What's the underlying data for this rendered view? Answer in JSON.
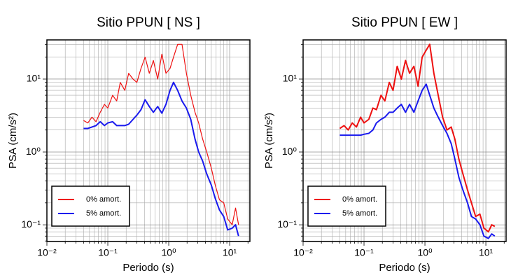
{
  "chart_data": [
    {
      "type": "line",
      "title": "Sitio PPUN [ NS ]",
      "xlabel": "Periodo (s)",
      "ylabel": "PSA (cm/s²)",
      "xscale": "log",
      "yscale": "log",
      "grid": true,
      "legend": "lower left",
      "xlim": [
        0.01,
        21.5
      ],
      "ylim": [
        0.059,
        34.5
      ],
      "xticks": [
        {
          "value": 0.01,
          "label": "10⁻²"
        },
        {
          "value": 0.1,
          "label": "10⁻¹"
        },
        {
          "value": 1,
          "label": "10⁰"
        },
        {
          "value": 10,
          "label": "10¹"
        }
      ],
      "yticks": [
        {
          "value": 0.1,
          "label": "10⁻¹"
        },
        {
          "value": 1,
          "label": "10⁰"
        },
        {
          "value": 10,
          "label": "10¹"
        }
      ],
      "x": [
        0.04,
        0.047,
        0.055,
        0.064,
        0.075,
        0.088,
        0.1,
        0.12,
        0.14,
        0.16,
        0.19,
        0.22,
        0.26,
        0.3,
        0.35,
        0.41,
        0.48,
        0.56,
        0.66,
        0.77,
        0.9,
        1.05,
        1.2,
        1.4,
        1.65,
        1.95,
        2.3,
        2.7,
        3.1,
        3.6,
        4.2,
        5,
        5.8,
        6.8,
        8,
        9.3,
        11,
        12.5,
        14
      ],
      "series": [
        {
          "name": "0% amort.",
          "color": "#ee1111",
          "width": 1.2,
          "values": [
            2.7,
            2.5,
            3,
            2.6,
            3.5,
            4.5,
            4,
            6,
            5,
            9,
            7,
            12,
            10,
            9,
            14,
            20,
            12,
            18,
            10,
            22,
            12,
            14,
            20,
            30,
            30,
            12,
            6,
            3.5,
            2.5,
            1.5,
            1.0,
            0.6,
            0.35,
            0.22,
            0.2,
            0.12,
            0.1,
            0.17,
            0.1
          ]
        },
        {
          "name": "5% amort.",
          "color": "#1a1aee",
          "width": 2,
          "values": [
            2.1,
            2.1,
            2.2,
            2.3,
            2.6,
            2.3,
            2.5,
            2.6,
            2.3,
            2.3,
            2.3,
            2.4,
            2.8,
            3.2,
            3.8,
            5.2,
            4.2,
            3.5,
            4.2,
            3.4,
            4.5,
            7,
            9,
            7,
            5,
            4,
            2.8,
            1.5,
            1.0,
            0.75,
            0.5,
            0.35,
            0.23,
            0.16,
            0.13,
            0.085,
            0.09,
            0.1,
            0.07
          ]
        }
      ]
    },
    {
      "type": "line",
      "title": "Sitio PPUN [ EW ]",
      "xlabel": "Periodo (s)",
      "ylabel": "PSA (cm/s²)",
      "xscale": "log",
      "yscale": "log",
      "grid": true,
      "legend": "lower left",
      "xlim": [
        0.01,
        21.5
      ],
      "ylim": [
        0.059,
        34.5
      ],
      "xticks": [
        {
          "value": 0.01,
          "label": "10⁻²"
        },
        {
          "value": 0.1,
          "label": "10⁻¹"
        },
        {
          "value": 1,
          "label": "10⁰"
        },
        {
          "value": 10,
          "label": "10¹"
        }
      ],
      "yticks": [
        {
          "value": 0.1,
          "label": "10⁻¹"
        },
        {
          "value": 1,
          "label": "10⁰"
        },
        {
          "value": 10,
          "label": "10¹"
        }
      ],
      "x": [
        0.04,
        0.047,
        0.055,
        0.064,
        0.075,
        0.088,
        0.1,
        0.12,
        0.14,
        0.16,
        0.19,
        0.22,
        0.26,
        0.3,
        0.35,
        0.41,
        0.48,
        0.56,
        0.66,
        0.77,
        0.9,
        1.05,
        1.2,
        1.4,
        1.65,
        1.95,
        2.3,
        2.7,
        3.1,
        3.6,
        4.2,
        5,
        5.8,
        6.8,
        8,
        9.3,
        11,
        12.5,
        14
      ],
      "series": [
        {
          "name": "0% amort.",
          "color": "#ee1111",
          "width": 2,
          "values": [
            2.1,
            2.3,
            2.0,
            2.5,
            2.2,
            3,
            2.5,
            2.8,
            4,
            3.8,
            6,
            5,
            9,
            7,
            15,
            10,
            18,
            12,
            15,
            8,
            20,
            25,
            30,
            12,
            6,
            3,
            2,
            2.2,
            1.5,
            0.8,
            0.5,
            0.3,
            0.2,
            0.13,
            0.14,
            0.09,
            0.08,
            0.1,
            0.095
          ]
        },
        {
          "name": "5% amort.",
          "color": "#1a1aee",
          "width": 2,
          "values": [
            1.7,
            1.7,
            1.7,
            1.7,
            1.7,
            1.7,
            1.75,
            1.8,
            2.0,
            2.5,
            2.8,
            3,
            3.5,
            3.5,
            4,
            4.5,
            3.5,
            4.5,
            3.5,
            5,
            7,
            8.5,
            6,
            4,
            3,
            2.3,
            1.8,
            1.3,
            0.8,
            0.45,
            0.3,
            0.2,
            0.13,
            0.12,
            0.1,
            0.07,
            0.065,
            0.075,
            0.07
          ]
        }
      ]
    }
  ]
}
